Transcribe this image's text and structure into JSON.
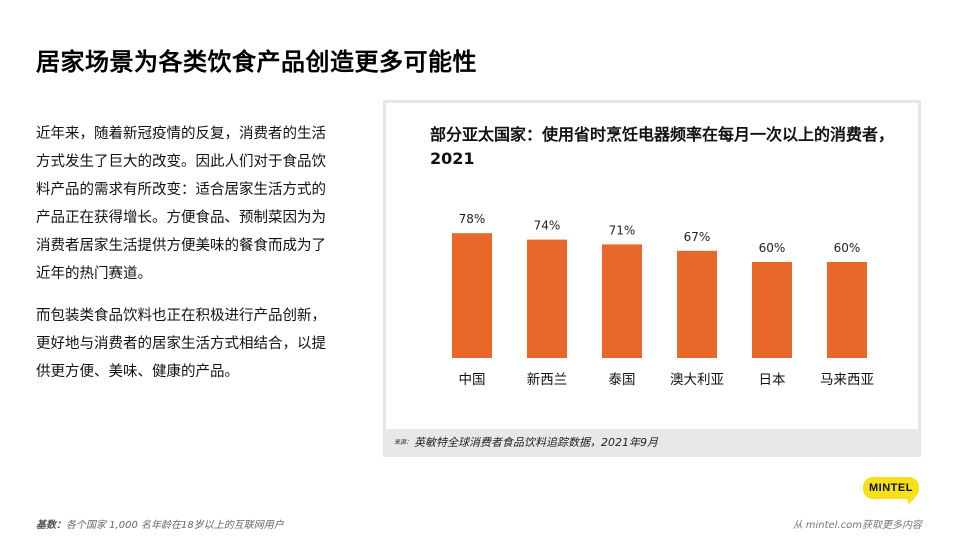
{
  "page": {
    "title": "居家场景为各类饮食产品创造更多可能性",
    "paragraphs": [
      "近年来，随着新冠疫情的反复，消费者的生活方式发生了巨大的改变。因此人们对于食品饮料产品的需求有所改变：适合居家生活方式的产品正在获得增长。方便食品、预制菜因为为消费者居家生活提供方便美味的餐食而成为了近年的热门赛道。",
      "而包装类食品饮料也正在积极进行产品创新，更好地与消费者的居家生活方式相结合，以提供更方便、美味、健康的产品。"
    ],
    "source_prefix": "来源：",
    "source": "英敏特全球消费者食品饮料追踪数据，2021年9月",
    "footnote_label": "基数：",
    "footnote": "各个国家 1,000 名年龄在18岁以上的互联网用户",
    "footer_link": "从 mintel.com获取更多内容",
    "logo_text": "MINTEL",
    "colors": {
      "bar": "#e8672a",
      "logo": "#f7e017",
      "source_bg": "#e8e8e8"
    }
  },
  "chart_data": {
    "type": "bar",
    "title": "部分亚太国家：使用省时烹饪电器频率在每月一次以上的消费者，2021",
    "categories": [
      "中国",
      "新西兰",
      "泰国",
      "澳大利亚",
      "日本",
      "马来西亚"
    ],
    "values": [
      78,
      74,
      71,
      67,
      60,
      60
    ],
    "value_labels": [
      "78%",
      "74%",
      "71%",
      "67%",
      "60%",
      "60%"
    ],
    "ylim": [
      0,
      100
    ],
    "grid": false,
    "legend": "none"
  }
}
